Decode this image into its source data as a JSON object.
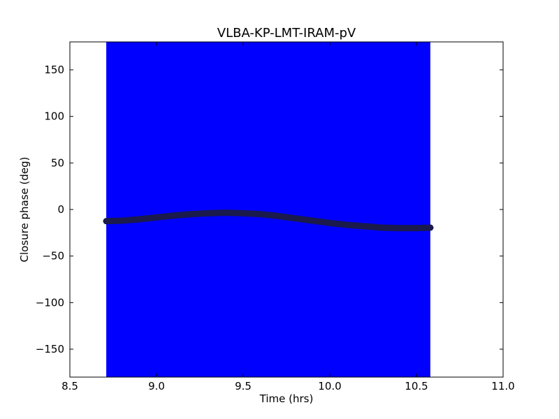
{
  "chart_data": {
    "type": "scatter",
    "title": "VLBA-KP-LMT-IRAM-pV",
    "xlabel": "Time (hrs)",
    "ylabel": "Closure phase (deg)",
    "xlim": [
      8.5,
      11.0
    ],
    "ylim": [
      -180,
      180
    ],
    "xticks": [
      8.5,
      9.0,
      9.5,
      10.0,
      10.5,
      11.0
    ],
    "xtick_labels": [
      "8.5",
      "9.0",
      "9.5",
      "10.0",
      "10.5",
      "11.0"
    ],
    "yticks": [
      150,
      100,
      50,
      0,
      -50,
      -100,
      -150
    ],
    "ytick_labels": [
      "150",
      "100",
      "50",
      "0",
      "−50",
      "−100",
      "−150"
    ],
    "grid": false,
    "shaded_span": {
      "x": [
        8.71,
        10.58
      ],
      "color": "#0000ff"
    },
    "series": [
      {
        "color": "#1a1a4d",
        "x": [
          8.71,
          8.8,
          8.9,
          9.0,
          9.1,
          9.2,
          9.3,
          9.4,
          9.5,
          9.6,
          9.7,
          9.8,
          9.9,
          10.0,
          10.1,
          10.2,
          10.3,
          10.4,
          10.5,
          10.58
        ],
        "y": [
          -12.5,
          -12,
          -10.5,
          -8.5,
          -6.5,
          -5,
          -4,
          -3.5,
          -4,
          -5,
          -7,
          -9.5,
          -12,
          -14.5,
          -16.5,
          -18,
          -19.5,
          -20,
          -20,
          -19.5
        ]
      }
    ]
  }
}
